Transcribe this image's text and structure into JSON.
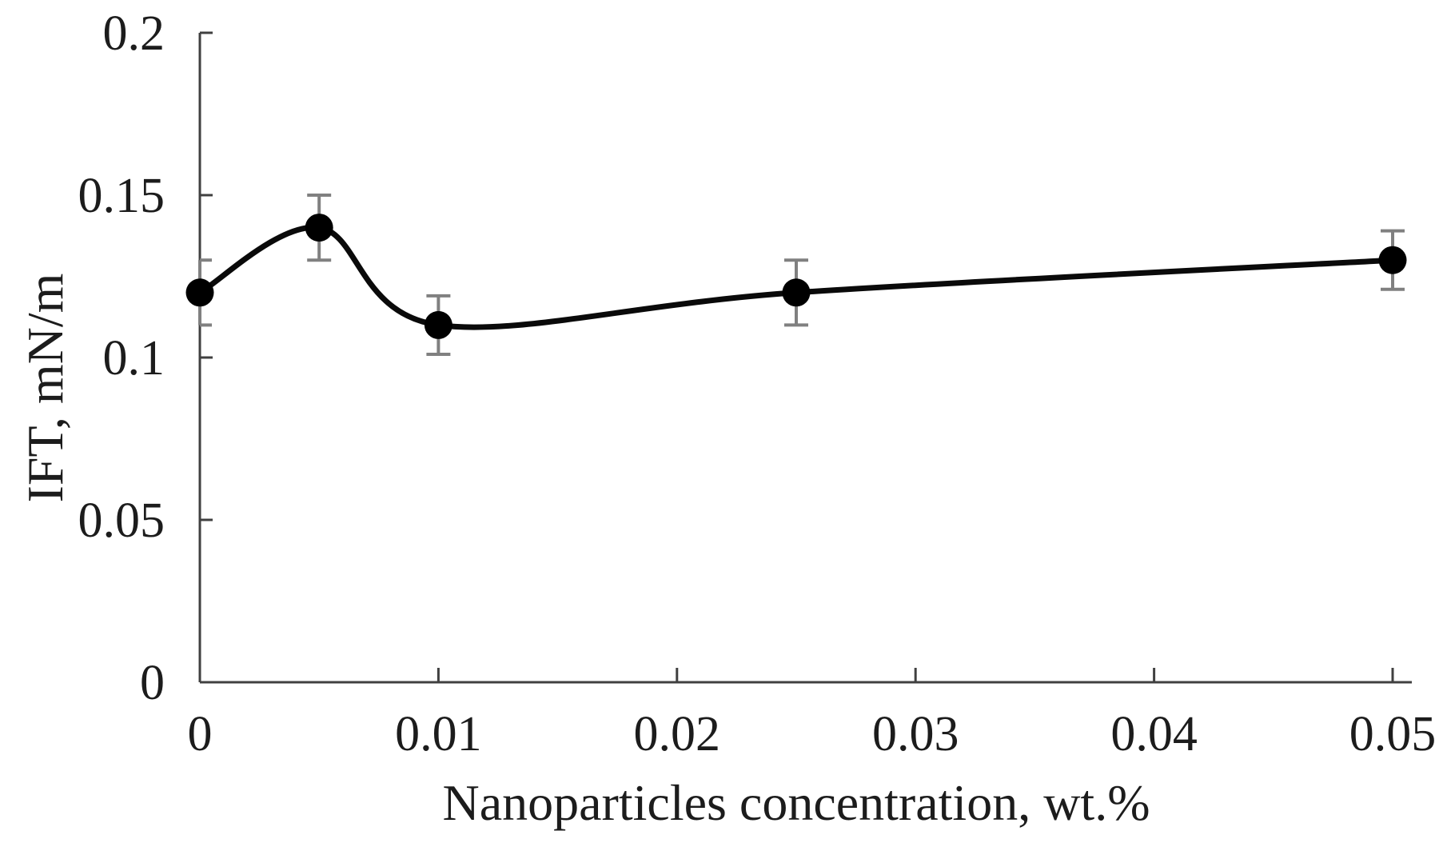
{
  "chart_data": {
    "type": "line",
    "title": "",
    "xlabel": "Nanoparticles concentration, wt.%",
    "ylabel": "IFT, mN/m",
    "series": [
      {
        "name": "IFT",
        "x": [
          0,
          0.005,
          0.01,
          0.025,
          0.05
        ],
        "y": [
          0.12,
          0.14,
          0.11,
          0.12,
          0.13
        ],
        "y_error": [
          0.01,
          0.01,
          0.009,
          0.01,
          0.009
        ]
      }
    ],
    "xlim": [
      0,
      0.05
    ],
    "ylim": [
      0,
      0.2
    ],
    "x_ticks": {
      "values": [
        0,
        0.01,
        0.02,
        0.03,
        0.04,
        0.05
      ],
      "labels": [
        "0",
        "0.01",
        "0.02",
        "0.03",
        "0.04",
        "0.05"
      ]
    },
    "y_ticks": {
      "values": [
        0,
        0.05,
        0.1,
        0.15,
        0.2
      ],
      "labels": [
        "0",
        "0.05",
        "0.1",
        "0.15",
        "0.2"
      ]
    },
    "grid": false,
    "legend": false,
    "line_smooth": true,
    "marker_shape": "circle",
    "style": {
      "background": "#ffffff",
      "text_color": "#1c1c1c",
      "axis_color": "#404040",
      "line_color": "#0a0a0a",
      "marker_color": "#000000",
      "error_bar_color": "#808080"
    }
  }
}
